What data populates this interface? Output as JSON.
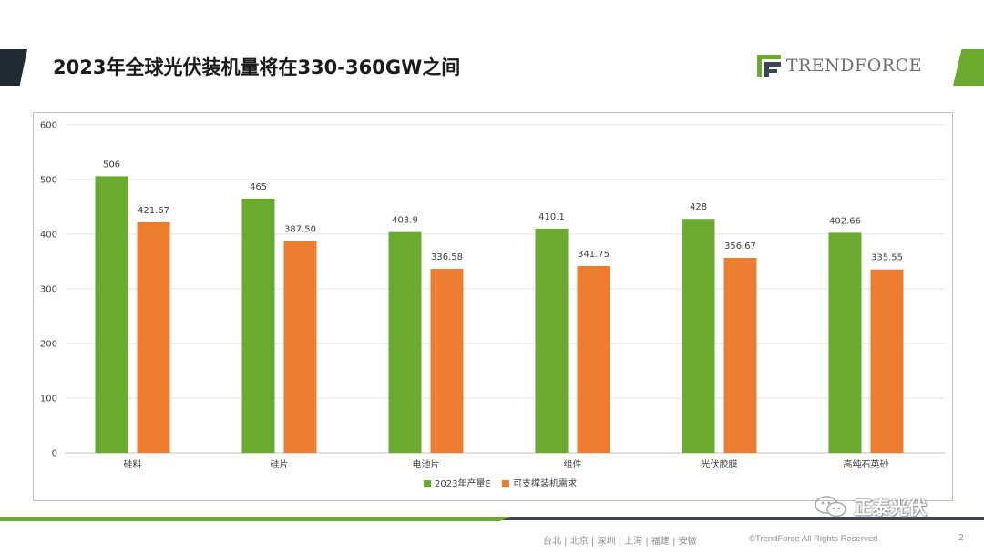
{
  "header": {
    "title": "2023年全球光伏装机量将在330-360GW之间",
    "logo_text": "TRENDFORCE",
    "logo_icon": "trendforce-logo-icon",
    "accent_green": "#6aaa2e",
    "accent_dark": "#1f2a33"
  },
  "chart_data": {
    "type": "bar",
    "categories": [
      "硅料",
      "硅片",
      "电池片",
      "组件",
      "光伏胶膜",
      "高纯石英砂"
    ],
    "series": [
      {
        "name": "2023年产量E",
        "values": [
          506,
          465,
          403.9,
          410.1,
          428,
          402.66
        ],
        "labels": [
          "506",
          "465",
          "403.9",
          "410.1",
          "428",
          "402.66"
        ],
        "color": "#6aaa2e"
      },
      {
        "name": "可支撑装机需求",
        "values": [
          421.67,
          387.5,
          336.58,
          341.75,
          356.67,
          335.55
        ],
        "labels": [
          "421.67",
          "387.50",
          "336.58",
          "341.75",
          "356.67",
          "335.55"
        ],
        "color": "#ed7d31"
      }
    ],
    "ylim": [
      0,
      600
    ],
    "yticks": [
      "0",
      "100",
      "200",
      "300",
      "400",
      "500",
      "600"
    ],
    "grid": true,
    "legend_position": "bottom"
  },
  "watermark": {
    "text": "正泰光伏",
    "icon": "wechat-icon"
  },
  "footer": {
    "locations": "台北 | 北京 | 深圳 | 上海 | 福建 | 安徽",
    "copyright": "©TrendForce All Rights Reserved",
    "page_number": "2"
  }
}
